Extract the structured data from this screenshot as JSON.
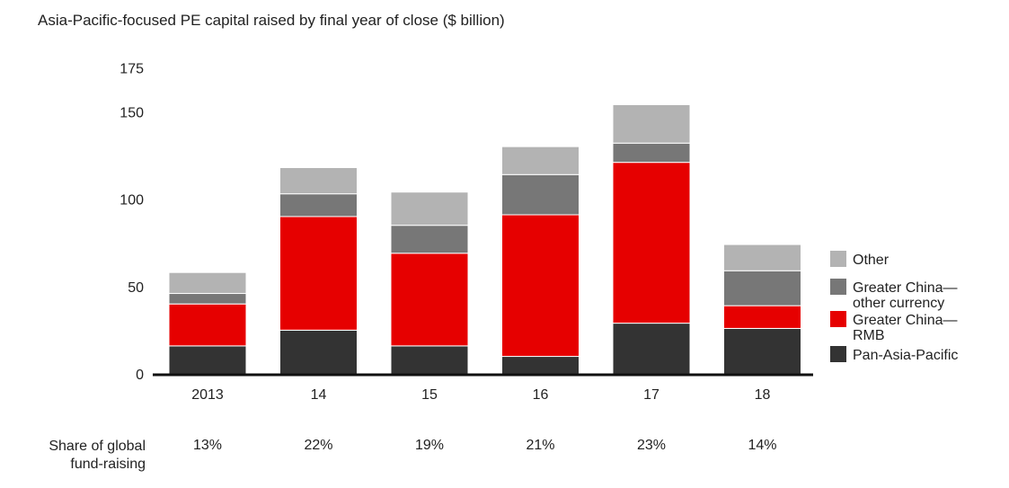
{
  "chart_data": {
    "type": "bar",
    "stacked": true,
    "title": "Asia-Pacific-focused PE capital raised by final year of close ($ billion)",
    "categories": [
      "2013",
      "14",
      "15",
      "16",
      "17",
      "18"
    ],
    "yticks": [
      0,
      50,
      100,
      150,
      175
    ],
    "ylim": [
      0,
      175
    ],
    "series": [
      {
        "name": "Pan-Asia-Pacific",
        "color": "#333333",
        "values": [
          16,
          25,
          16,
          10,
          29,
          26
        ]
      },
      {
        "name": "Greater China—RMB",
        "color": "#e60000",
        "values": [
          24,
          65,
          53,
          81,
          92,
          13
        ]
      },
      {
        "name": "Greater China—other currency",
        "color": "#777777",
        "values": [
          6,
          13,
          16,
          23,
          11,
          20
        ]
      },
      {
        "name": "Other",
        "color": "#b3b3b3",
        "values": [
          12,
          15,
          19,
          16,
          22,
          15
        ]
      }
    ],
    "legend": {
      "position": "right",
      "order": [
        3,
        2,
        1,
        0
      ],
      "labels": [
        {
          "lines": [
            "Other"
          ]
        },
        {
          "lines": [
            "Greater China—",
            "other currency"
          ]
        },
        {
          "lines": [
            "Greater China—",
            "RMB"
          ]
        },
        {
          "lines": [
            "Pan-Asia-Pacific"
          ]
        }
      ]
    },
    "share": {
      "label_lines": [
        "Share of global",
        "fund-raising"
      ],
      "values": [
        "13%",
        "22%",
        "19%",
        "21%",
        "23%",
        "14%"
      ]
    }
  }
}
